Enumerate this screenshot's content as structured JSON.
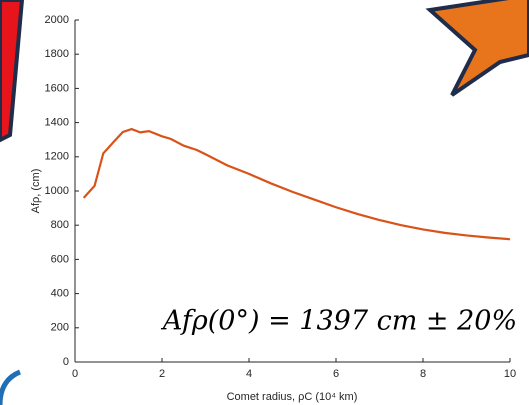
{
  "chart_data": {
    "type": "line",
    "xlabel": "Comet radius, ρC (10⁴ km)",
    "ylabel": "Afρ, (cm)",
    "annotation": "Afρ(0°) = 1397 cm ± 20%",
    "x": [
      0.2,
      0.45,
      0.65,
      0.9,
      1.1,
      1.3,
      1.5,
      1.7,
      2.0,
      2.2,
      2.5,
      2.8,
      3.0,
      3.5,
      4.0,
      4.5,
      5.0,
      5.5,
      6.0,
      6.5,
      7.0,
      7.5,
      8.0,
      8.5,
      9.0,
      9.5,
      10.0
    ],
    "series": [
      {
        "color": "#d95319",
        "values": [
          960,
          1030,
          1220,
          1290,
          1345,
          1362,
          1343,
          1350,
          1320,
          1305,
          1265,
          1240,
          1215,
          1150,
          1100,
          1045,
          995,
          950,
          905,
          865,
          830,
          800,
          775,
          755,
          740,
          728,
          718
        ]
      }
    ],
    "xlim": [
      0,
      10
    ],
    "xticks": [
      0,
      2,
      4,
      6,
      8,
      10
    ],
    "ylim": [
      0,
      2000
    ],
    "yticks": [
      0,
      200,
      400,
      600,
      800,
      1000,
      1200,
      1400,
      1600,
      1800,
      2000
    ]
  }
}
